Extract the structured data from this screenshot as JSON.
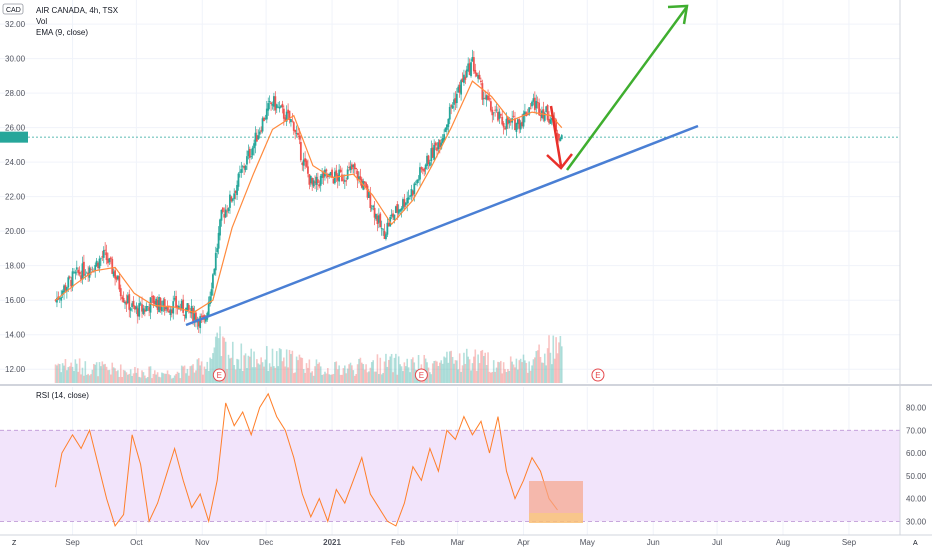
{
  "header": {
    "currency": "CAD",
    "symbol_line": "AIR CANADA, 4h, TSX",
    "indicator_vol": "Vol",
    "indicator_ema": "EMA (9, close)",
    "indicator_rsi": "RSI (14, close)"
  },
  "corner": {
    "left": "Z",
    "right": "A"
  },
  "colors": {
    "candle_up": "#26a69a",
    "candle_down": "#ef5350",
    "ema_line": "#ff8a3d",
    "trendline": "#4a7fd4",
    "arrow_up": "#3fae2f",
    "arrow_down": "#e8302a",
    "rsi_line": "#ff7f2a",
    "rsi_band": "#f2e4fb",
    "highlight_box": "#f6a58a",
    "price_marker": "#26a69a"
  },
  "chart_data": [
    {
      "type": "line",
      "panel": "price",
      "y_axis_ticks": [
        "12.00",
        "14.00",
        "16.00",
        "18.00",
        "20.00",
        "22.00",
        "24.00",
        "26.00",
        "28.00",
        "30.00",
        "32.00"
      ],
      "ylim": [
        11.2,
        33.4
      ],
      "x_axis_ticks": [
        "Sep",
        "Oct",
        "Nov",
        "Dec",
        "2021",
        "Feb",
        "Mar",
        "Apr",
        "May",
        "Jun",
        "Jul",
        "Aug",
        "Sep"
      ],
      "current_price": 25.45,
      "earnings_markers": [
        "E",
        "E",
        "E"
      ],
      "series": [
        {
          "name": "AIR CANADA",
          "x": [
            "2020-08-24",
            "2020-08-28",
            "2020-09-02",
            "2020-09-07",
            "2020-09-11",
            "2020-09-16",
            "2020-09-21",
            "2020-09-25",
            "2020-09-30",
            "2020-10-05",
            "2020-10-09",
            "2020-10-14",
            "2020-10-19",
            "2020-10-23",
            "2020-10-28",
            "2020-11-02",
            "2020-11-06",
            "2020-11-10",
            "2020-11-15",
            "2020-11-20",
            "2020-11-25",
            "2020-11-30",
            "2020-12-04",
            "2020-12-09",
            "2020-12-14",
            "2020-12-18",
            "2020-12-23",
            "2020-12-28",
            "2021-01-01",
            "2021-01-06",
            "2021-01-11",
            "2021-01-15",
            "2021-01-20",
            "2021-01-25",
            "2021-01-29",
            "2021-02-03",
            "2021-02-08",
            "2021-02-12",
            "2021-02-17",
            "2021-02-22",
            "2021-02-26",
            "2021-03-03",
            "2021-03-08",
            "2021-03-12",
            "2021-03-17",
            "2021-03-22",
            "2021-03-26",
            "2021-03-31",
            "2021-04-05",
            "2021-04-09",
            "2021-04-14",
            "2021-04-19"
          ],
          "y": [
            16.0,
            16.7,
            17.4,
            17.8,
            18.0,
            18.6,
            17.5,
            16.2,
            15.4,
            15.5,
            16.0,
            15.6,
            15.7,
            15.5,
            15.2,
            14.6,
            17.5,
            20.8,
            22.0,
            23.6,
            25.0,
            26.6,
            27.5,
            26.8,
            26.2,
            24.2,
            22.5,
            23.2,
            23.1,
            23.2,
            23.6,
            22.8,
            21.5,
            19.8,
            20.8,
            21.6,
            22.4,
            23.5,
            24.5,
            25.6,
            27.2,
            28.6,
            29.8,
            28.2,
            27.0,
            26.3,
            26.2,
            26.4,
            27.5,
            27.1,
            26.6,
            25.3
          ]
        },
        {
          "name": "EMA (9, close)",
          "x": [
            "2020-08-24",
            "2020-09-02",
            "2020-09-11",
            "2020-09-21",
            "2020-09-30",
            "2020-10-09",
            "2020-10-19",
            "2020-10-28",
            "2020-11-06",
            "2020-11-15",
            "2020-11-25",
            "2020-12-04",
            "2020-12-14",
            "2020-12-23",
            "2021-01-01",
            "2021-01-11",
            "2021-01-20",
            "2021-01-29",
            "2021-02-08",
            "2021-02-17",
            "2021-02-26",
            "2021-03-08",
            "2021-03-17",
            "2021-03-26",
            "2021-04-05",
            "2021-04-14",
            "2021-04-19"
          ],
          "y": [
            16.0,
            16.9,
            17.7,
            17.9,
            16.4,
            15.7,
            15.6,
            15.3,
            16.0,
            20.2,
            23.3,
            25.9,
            26.7,
            23.8,
            23.1,
            23.3,
            22.1,
            20.4,
            21.8,
            23.8,
            26.0,
            28.7,
            27.8,
            26.4,
            26.9,
            26.7,
            26.0
          ]
        }
      ]
    },
    {
      "type": "bar",
      "panel": "volume",
      "name": "Vol",
      "x": [
        "2020-08-24",
        "2020-09-07",
        "2020-09-21",
        "2020-10-05",
        "2020-10-19",
        "2020-11-02",
        "2020-11-09",
        "2020-11-16",
        "2020-11-30",
        "2020-12-14",
        "2020-12-28",
        "2021-01-11",
        "2021-01-25",
        "2021-02-08",
        "2021-02-22",
        "2021-03-08",
        "2021-03-22",
        "2021-04-05",
        "2021-04-14"
      ],
      "values": [
        0.45,
        0.35,
        0.3,
        0.25,
        0.22,
        0.4,
        0.85,
        0.6,
        0.55,
        0.5,
        0.3,
        0.35,
        0.45,
        0.4,
        0.45,
        0.55,
        0.4,
        0.5,
        0.75
      ]
    },
    {
      "type": "line",
      "panel": "rsi",
      "name": "RSI (14, close)",
      "y_axis_ticks": [
        "30.00",
        "40.00",
        "50.00",
        "60.00",
        "70.00",
        "80.00"
      ],
      "ylim": [
        24,
        89
      ],
      "band": [
        30,
        70
      ],
      "x": [
        "2020-08-24",
        "2020-08-27",
        "2020-09-01",
        "2020-09-05",
        "2020-09-09",
        "2020-09-13",
        "2020-09-17",
        "2020-09-21",
        "2020-09-25",
        "2020-09-29",
        "2020-10-03",
        "2020-10-07",
        "2020-10-11",
        "2020-10-15",
        "2020-10-19",
        "2020-10-23",
        "2020-10-27",
        "2020-10-31",
        "2020-11-04",
        "2020-11-08",
        "2020-11-12",
        "2020-11-16",
        "2020-11-20",
        "2020-11-24",
        "2020-11-28",
        "2020-12-02",
        "2020-12-06",
        "2020-12-10",
        "2020-12-14",
        "2020-12-18",
        "2020-12-22",
        "2020-12-26",
        "2020-12-30",
        "2021-01-03",
        "2021-01-07",
        "2021-01-11",
        "2021-01-15",
        "2021-01-19",
        "2021-01-23",
        "2021-01-27",
        "2021-01-31",
        "2021-02-04",
        "2021-02-08",
        "2021-02-12",
        "2021-02-16",
        "2021-02-20",
        "2021-02-24",
        "2021-02-28",
        "2021-03-04",
        "2021-03-08",
        "2021-03-12",
        "2021-03-16",
        "2021-03-20",
        "2021-03-24",
        "2021-03-28",
        "2021-04-01",
        "2021-04-05",
        "2021-04-09",
        "2021-04-13",
        "2021-04-17"
      ],
      "values": [
        45,
        60,
        68,
        62,
        70,
        55,
        40,
        28,
        33,
        68,
        55,
        30,
        38,
        50,
        62,
        48,
        36,
        42,
        30,
        48,
        82,
        72,
        78,
        68,
        80,
        86,
        76,
        70,
        58,
        42,
        32,
        40,
        30,
        44,
        38,
        48,
        58,
        42,
        36,
        30,
        28,
        38,
        54,
        48,
        62,
        52,
        70,
        66,
        76,
        68,
        74,
        60,
        76,
        52,
        40,
        48,
        58,
        52,
        40,
        35
      ]
    }
  ]
}
